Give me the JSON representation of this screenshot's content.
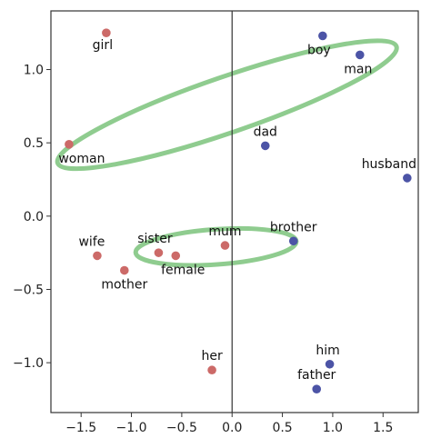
{
  "chart_data": {
    "type": "scatter",
    "title": "",
    "xlabel": "",
    "ylabel": "",
    "xlim": [
      -1.8,
      1.85
    ],
    "ylim": [
      -1.34,
      1.4
    ],
    "x_ticks": [
      {
        "value": -1.5,
        "label": "−1.5"
      },
      {
        "value": -1.0,
        "label": "−1.0"
      },
      {
        "value": -0.5,
        "label": "−0.5"
      },
      {
        "value": 0.0,
        "label": "0.0"
      },
      {
        "value": 0.5,
        "label": "0.5"
      },
      {
        "value": 1.0,
        "label": "1.0"
      },
      {
        "value": 1.5,
        "label": "1.5"
      }
    ],
    "y_ticks": [
      {
        "value": 1.0,
        "label": "1.0"
      },
      {
        "value": 0.5,
        "label": "0.5"
      },
      {
        "value": 0.0,
        "label": "0.0"
      },
      {
        "value": -0.5,
        "label": "−0.5"
      },
      {
        "value": -1.0,
        "label": "−1.0"
      }
    ],
    "grid": false,
    "vertical_line_at_x": 0,
    "colors": {
      "female": "#cc6a68",
      "male": "#4c54a6",
      "ellipse": "#8fcc8f",
      "axis": "#333333"
    },
    "points": [
      {
        "label": "girl",
        "x": -1.25,
        "y": 1.25,
        "group": "female"
      },
      {
        "label": "woman",
        "x": -1.62,
        "y": 0.49,
        "group": "female"
      },
      {
        "label": "wife",
        "x": -1.34,
        "y": -0.27,
        "group": "female"
      },
      {
        "label": "mother",
        "x": -1.07,
        "y": -0.37,
        "group": "female"
      },
      {
        "label": "sister",
        "x": -0.73,
        "y": -0.25,
        "group": "female"
      },
      {
        "label": "female",
        "x": -0.56,
        "y": -0.27,
        "group": "female"
      },
      {
        "label": "mum",
        "x": -0.07,
        "y": -0.2,
        "group": "female"
      },
      {
        "label": "her",
        "x": -0.2,
        "y": -1.05,
        "group": "female"
      },
      {
        "label": "boy",
        "x": 0.9,
        "y": 1.23,
        "group": "male"
      },
      {
        "label": "man",
        "x": 1.27,
        "y": 1.1,
        "group": "male"
      },
      {
        "label": "dad",
        "x": 0.33,
        "y": 0.48,
        "group": "male"
      },
      {
        "label": "husband",
        "x": 1.74,
        "y": 0.26,
        "group": "male"
      },
      {
        "label": "brother",
        "x": 0.61,
        "y": -0.17,
        "group": "male"
      },
      {
        "label": "him",
        "x": 0.97,
        "y": -1.01,
        "group": "male"
      },
      {
        "label": "father",
        "x": 0.84,
        "y": -1.18,
        "group": "male"
      }
    ],
    "ellipses": [
      {
        "cx": -0.05,
        "cy": 0.76,
        "rx": 1.78,
        "ry": 0.19,
        "angle_deg": -19
      },
      {
        "cx": -0.16,
        "cy": -0.21,
        "rx": 0.8,
        "ry": 0.12,
        "angle_deg": -4
      }
    ]
  }
}
